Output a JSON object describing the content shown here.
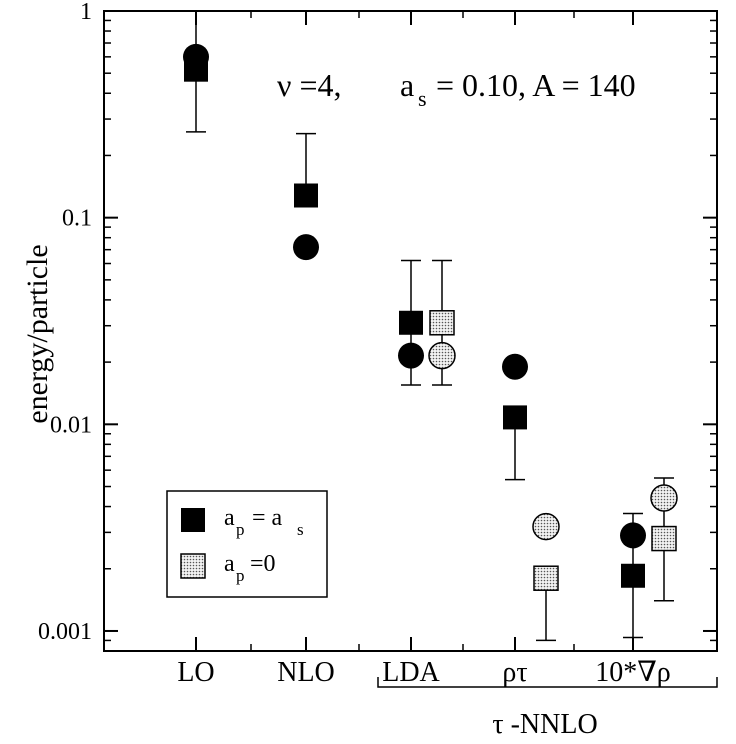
{
  "chart_data": {
    "type": "scatter",
    "yscale": "log",
    "ylim": [
      0.0008,
      1.0
    ],
    "ylabel": "energy/particle",
    "xlabel": "",
    "categories": [
      "LO",
      "NLO",
      "LDA",
      "ρτ",
      "10*∇ρ"
    ],
    "bracket_label": "τ -NNLO",
    "y_ticks": [
      {
        "value": 0.001,
        "label": "0.001"
      },
      {
        "value": 0.01,
        "label": "0.01"
      },
      {
        "value": 0.1,
        "label": "0.1"
      },
      {
        "value": 1,
        "label": "1"
      }
    ],
    "annotation": {
      "nu": "ν =4,",
      "as_a": "a",
      "as_sub": "s",
      "as_rest": "= 0.10, A = 140"
    },
    "legend": {
      "placement": "lower-left",
      "entry1": {
        "main": "a",
        "sub1": "p",
        "mid": "= a",
        "sub2": "s"
      },
      "entry2": {
        "main": "a",
        "sub1": "p",
        "rest": "=0"
      }
    },
    "series": [
      {
        "marker": "square",
        "fill": "#000000",
        "points": [
          {
            "category": "LO",
            "y": 0.52,
            "err_low": 0.26,
            "err_high": 1.0
          },
          {
            "category": "NLO",
            "y": 0.128,
            "err_low": null,
            "err_high": 0.255
          },
          {
            "category": "LDA",
            "y": 0.031,
            "err_low": 0.0155,
            "err_high": 0.062
          },
          {
            "category": "ρτ",
            "y": 0.0108,
            "err_low": 0.0054,
            "err_high": null
          },
          {
            "category": "10*∇ρ",
            "y": 0.00185,
            "err_low": 0.00093,
            "err_high": 0.0037
          }
        ]
      },
      {
        "marker": "circle",
        "fill": "#000000",
        "points": [
          {
            "category": "LO",
            "y": 0.6
          },
          {
            "category": "NLO",
            "y": 0.072
          },
          {
            "category": "LDA",
            "y": 0.0215
          },
          {
            "category": "ρτ",
            "y": 0.019
          },
          {
            "category": "10*∇ρ",
            "y": 0.0029
          }
        ]
      },
      {
        "marker": "square",
        "fill": "#d3d3d3",
        "points": [
          {
            "category": "LDA",
            "y": 0.031,
            "err_low": 0.0155,
            "err_high": 0.062
          },
          {
            "category": "ρτ",
            "y": 0.0018,
            "err_low": 0.0009,
            "err_high": null
          },
          {
            "category": "10*∇ρ",
            "y": 0.0028,
            "err_low": 0.0014,
            "err_high": 0.0055
          }
        ]
      },
      {
        "marker": "circle",
        "fill": "#d3d3d3",
        "points": [
          {
            "category": "LDA",
            "y": 0.0215
          },
          {
            "category": "ρτ",
            "y": 0.0032
          },
          {
            "category": "10*∇ρ",
            "y": 0.0044
          }
        ]
      }
    ]
  }
}
